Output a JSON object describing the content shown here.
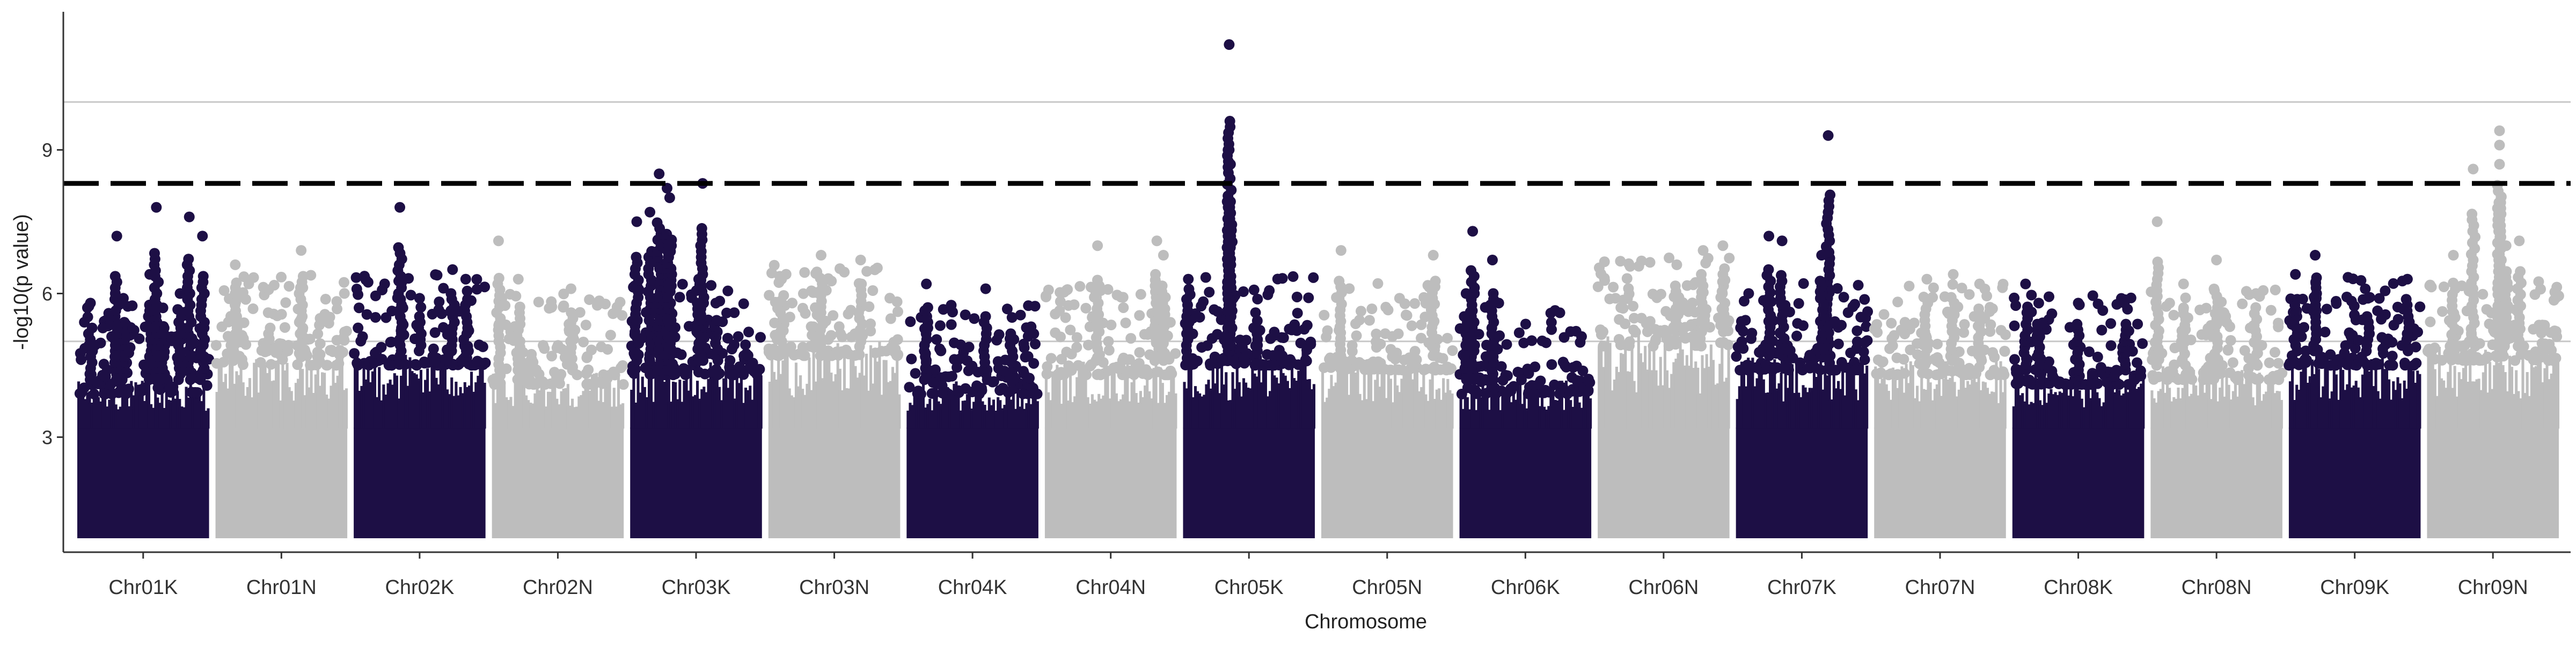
{
  "chart_data": {
    "type": "scatter",
    "title": "",
    "xlabel": "Chromosome",
    "ylabel": "-log10(p value)",
    "ylim": [
      0.5,
      11.5
    ],
    "yticks": [
      3,
      6,
      9
    ],
    "grid": "horizontal reference lines at y=5 and y=10",
    "threshold": 8.3,
    "colors": {
      "dark": "#1d0f45",
      "light": "#bdbdbd",
      "threshold": "#000000",
      "refline": "#c8c8c8",
      "axis": "#333333"
    },
    "categories": [
      "Chr01K",
      "Chr01N",
      "Chr02K",
      "Chr02N",
      "Chr03K",
      "Chr03N",
      "Chr04K",
      "Chr04N",
      "Chr05K",
      "Chr05N",
      "Chr06K",
      "Chr06N",
      "Chr07K",
      "Chr07N",
      "Chr08K",
      "Chr08N",
      "Chr09K",
      "Chr09N"
    ],
    "series": [
      {
        "color_key": "dark",
        "base_top": 4.2,
        "peaks": [
          [
            0.1,
            5.8
          ],
          [
            0.35,
            5.9
          ],
          [
            0.55,
            6.4
          ],
          [
            0.65,
            5.7
          ],
          [
            0.78,
            6.0
          ],
          [
            0.85,
            7.6
          ],
          [
            0.6,
            7.8
          ],
          [
            0.95,
            7.2
          ],
          [
            0.3,
            7.2
          ]
        ]
      },
      {
        "color_key": "light",
        "base_top": 4.8,
        "peaks": [
          [
            0.15,
            6.6
          ],
          [
            0.65,
            6.9
          ],
          [
            0.4,
            5.6
          ]
        ]
      },
      {
        "color_key": "dark",
        "base_top": 4.8,
        "peaks": [
          [
            0.35,
            7.8
          ],
          [
            0.5,
            5.9
          ],
          [
            0.75,
            6.5
          ],
          [
            0.85,
            6.3
          ]
        ]
      },
      {
        "color_key": "light",
        "base_top": 4.4,
        "peaks": [
          [
            0.05,
            7.1
          ],
          [
            0.2,
            6.3
          ],
          [
            0.6,
            6.1
          ]
        ]
      },
      {
        "color_key": "dark",
        "base_top": 4.6,
        "peaks": [
          [
            0.05,
            7.5
          ],
          [
            0.15,
            7.7
          ],
          [
            0.22,
            8.5
          ],
          [
            0.28,
            8.2
          ],
          [
            0.3,
            8.0
          ],
          [
            0.55,
            8.3
          ],
          [
            0.52,
            6.3
          ],
          [
            0.65,
            5.8
          ]
        ]
      },
      {
        "color_key": "light",
        "base_top": 5.0,
        "peaks": [
          [
            0.1,
            6.3
          ],
          [
            0.4,
            6.8
          ],
          [
            0.7,
            6.7
          ]
        ]
      },
      {
        "color_key": "dark",
        "base_top": 4.2,
        "peaks": [
          [
            0.15,
            6.2
          ],
          [
            0.6,
            6.1
          ],
          [
            0.8,
            5.5
          ]
        ]
      },
      {
        "color_key": "light",
        "base_top": 4.6,
        "peaks": [
          [
            0.4,
            7.0
          ],
          [
            0.85,
            7.1
          ],
          [
            0.9,
            6.8
          ]
        ]
      },
      {
        "color_key": "dark",
        "base_top": 4.8,
        "peaks": [
          [
            0.04,
            6.3
          ],
          [
            0.35,
            11.2
          ],
          [
            0.35,
            9.0
          ],
          [
            0.36,
            8.7
          ],
          [
            0.35,
            7.9
          ],
          [
            0.35,
            7.4
          ],
          [
            0.55,
            5.6
          ]
        ]
      },
      {
        "color_key": "light",
        "base_top": 4.7,
        "peaks": [
          [
            0.15,
            6.9
          ],
          [
            0.85,
            6.8
          ]
        ]
      },
      {
        "color_key": "dark",
        "base_top": 4.2,
        "peaks": [
          [
            0.1,
            7.3
          ],
          [
            0.25,
            6.7
          ],
          [
            0.05,
            6.0
          ]
        ]
      },
      {
        "color_key": "light",
        "base_top": 5.2,
        "peaks": [
          [
            0.6,
            6.6
          ],
          [
            0.8,
            6.9
          ],
          [
            0.95,
            7.0
          ]
        ]
      },
      {
        "color_key": "dark",
        "base_top": 4.7,
        "peaks": [
          [
            0.25,
            7.2
          ],
          [
            0.35,
            7.1
          ],
          [
            0.7,
            9.3
          ],
          [
            0.65,
            6.8
          ]
        ]
      },
      {
        "color_key": "light",
        "base_top": 4.6,
        "peaks": [
          [
            0.4,
            6.3
          ],
          [
            0.6,
            6.4
          ],
          [
            0.8,
            6.2
          ]
        ]
      },
      {
        "color_key": "dark",
        "base_top": 4.4,
        "peaks": [
          [
            0.1,
            6.2
          ],
          [
            0.2,
            5.8
          ],
          [
            0.5,
            5.8
          ],
          [
            0.85,
            5.8
          ]
        ]
      },
      {
        "color_key": "light",
        "base_top": 4.5,
        "peaks": [
          [
            0.05,
            7.5
          ],
          [
            0.25,
            6.2
          ],
          [
            0.5,
            6.7
          ],
          [
            0.8,
            6.0
          ]
        ]
      },
      {
        "color_key": "dark",
        "base_top": 4.8,
        "peaks": [
          [
            0.05,
            6.4
          ],
          [
            0.2,
            6.8
          ],
          [
            0.6,
            5.9
          ],
          [
            0.9,
            6.3
          ]
        ]
      },
      {
        "color_key": "light",
        "base_top": 4.9,
        "peaks": [
          [
            0.2,
            6.8
          ],
          [
            0.35,
            8.6
          ],
          [
            0.55,
            9.4
          ],
          [
            0.55,
            9.1
          ],
          [
            0.55,
            8.7
          ],
          [
            0.7,
            7.1
          ],
          [
            0.6,
            7.0
          ]
        ]
      }
    ]
  }
}
